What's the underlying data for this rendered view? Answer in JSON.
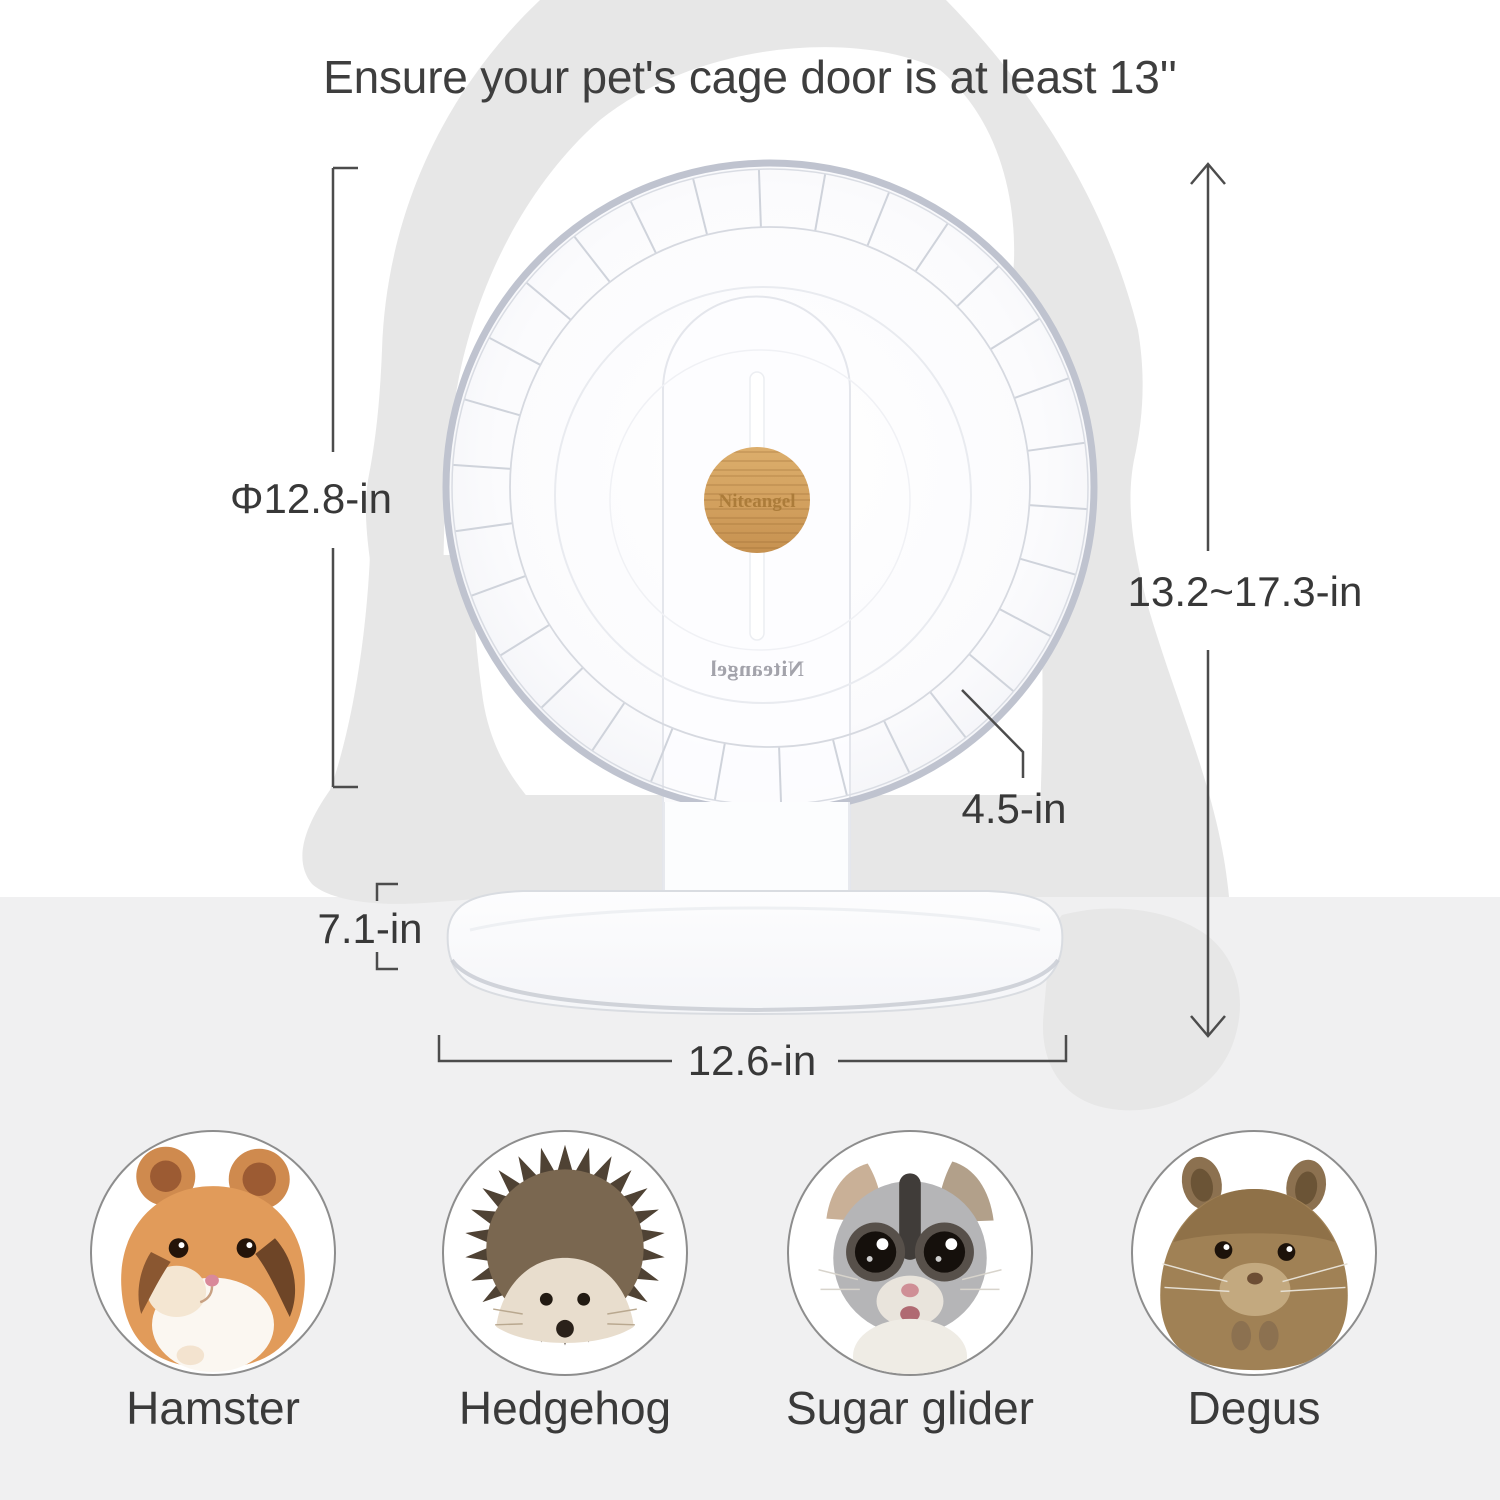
{
  "title": "Ensure your pet's cage door is at least 13''",
  "brand": {
    "wordmark": "Niteangel",
    "wordmark_mirrored": "Niteangel"
  },
  "dimensions": {
    "diameter_label": "Φ12.8-in",
    "height_range_label": "13.2~17.3-in",
    "wheel_depth_label": "4.5-in",
    "base_depth_label": "7.1-in",
    "base_width_label": "12.6-in"
  },
  "pets": [
    {
      "label": "Hamster"
    },
    {
      "label": "Hedgehog"
    },
    {
      "label": "Sugar glider"
    },
    {
      "label": "Degus"
    }
  ],
  "colors": {
    "bamboo_hub": "#d2a05e",
    "silhouette": "#e7e7e7",
    "floor": "#f0f0f1",
    "annotation_line": "#4c4c4c",
    "label_text": "#383838",
    "wheel_rim": "#bfc3cf"
  }
}
